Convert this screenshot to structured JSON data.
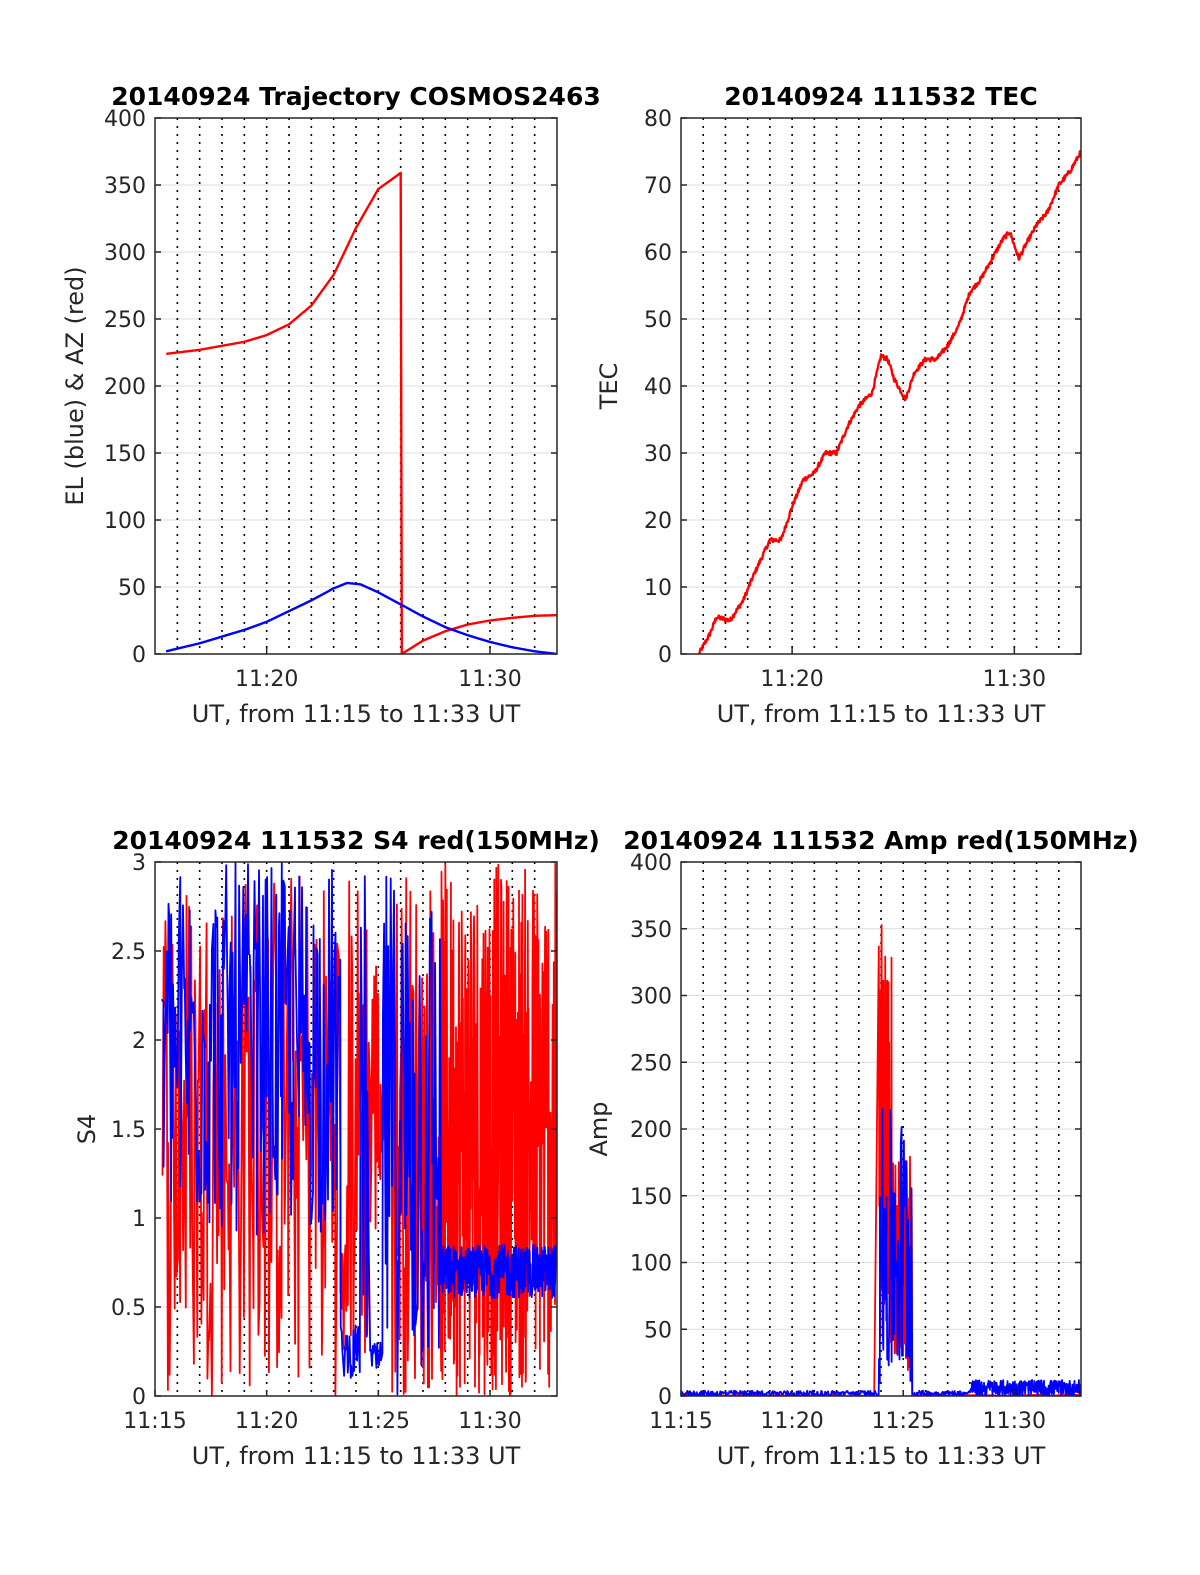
{
  "colors": {
    "red": "#ff0000",
    "blue": "#0000ff",
    "axis": "#262626",
    "grid": "#dcdcdc",
    "vgrid": "#000000"
  },
  "chart_data": [
    {
      "type": "line",
      "title": "20140924 Trajectory COSMOS2463",
      "xlabel": "UT, from 11:15 to 11:33 UT",
      "ylabel": "EL (blue) & AZ (red)",
      "xlim": [
        0,
        18
      ],
      "ylim": [
        0,
        400
      ],
      "xticks": [
        {
          "v": 5,
          "label": "11:20"
        },
        {
          "v": 15,
          "label": "11:30"
        }
      ],
      "yticks": [
        0,
        50,
        100,
        150,
        200,
        250,
        300,
        350,
        400
      ],
      "minutes_grid": true,
      "series": [
        {
          "color": "red",
          "points": [
            [
              0.5,
              224
            ],
            [
              2,
              227
            ],
            [
              4,
              233
            ],
            [
              5,
              238
            ],
            [
              6,
              246
            ],
            [
              7,
              260
            ],
            [
              8,
              283
            ],
            [
              9,
              318
            ],
            [
              10,
              347
            ],
            [
              11,
              359
            ],
            [
              11.05,
              0
            ],
            [
              12,
              10
            ],
            [
              13,
              17
            ],
            [
              14,
              22
            ],
            [
              15,
              25
            ],
            [
              16,
              27
            ],
            [
              17,
              28.5
            ],
            [
              18,
              29
            ]
          ]
        },
        {
          "color": "blue",
          "points": [
            [
              0.5,
              2
            ],
            [
              2,
              8
            ],
            [
              4,
              18
            ],
            [
              5,
              24
            ],
            [
              6,
              32
            ],
            [
              7,
              40
            ],
            [
              8,
              49
            ],
            [
              8.6,
              53
            ],
            [
              9.2,
              52
            ],
            [
              10,
              46
            ],
            [
              11,
              37
            ],
            [
              12,
              28
            ],
            [
              13,
              20
            ],
            [
              14,
              14
            ],
            [
              15,
              9
            ],
            [
              16,
              5
            ],
            [
              17,
              2
            ],
            [
              18,
              0
            ]
          ]
        }
      ]
    },
    {
      "type": "line",
      "title": "20140924 111532 TEC",
      "xlabel": "UT, from 11:15 to 11:33 UT",
      "ylabel": "TEC",
      "xlim": [
        0,
        18
      ],
      "ylim": [
        0,
        80
      ],
      "xticks": [
        {
          "v": 5,
          "label": "11:20"
        },
        {
          "v": 15,
          "label": "11:30"
        }
      ],
      "yticks": [
        0,
        10,
        20,
        30,
        40,
        50,
        60,
        70,
        80
      ],
      "minutes_grid": true,
      "series": [
        {
          "color": "red",
          "noise": 0.35,
          "points": [
            [
              0.8,
              0
            ],
            [
              1.3,
              3
            ],
            [
              1.6,
              5.5
            ],
            [
              2.2,
              5
            ],
            [
              2.8,
              8
            ],
            [
              3.3,
              12
            ],
            [
              4,
              17
            ],
            [
              4.5,
              17
            ],
            [
              5,
              22
            ],
            [
              5.5,
              26
            ],
            [
              6,
              27
            ],
            [
              6.5,
              30
            ],
            [
              7,
              30
            ],
            [
              7.5,
              34
            ],
            [
              8,
              37
            ],
            [
              8.6,
              39
            ],
            [
              9,
              44.5
            ],
            [
              9.3,
              44
            ],
            [
              9.6,
              41
            ],
            [
              10.1,
              38
            ],
            [
              10.5,
              42
            ],
            [
              11,
              44
            ],
            [
              11.5,
              44
            ],
            [
              12,
              46
            ],
            [
              12.5,
              49
            ],
            [
              13,
              54
            ],
            [
              13.5,
              56
            ],
            [
              14,
              59
            ],
            [
              14.5,
              62
            ],
            [
              14.8,
              63
            ],
            [
              15.2,
              59
            ],
            [
              15.5,
              61
            ],
            [
              16,
              64
            ],
            [
              16.5,
              66
            ],
            [
              17,
              70
            ],
            [
              17.5,
              72
            ],
            [
              18,
              75
            ]
          ]
        }
      ]
    },
    {
      "type": "line",
      "title": "20140924 111532 S4 red(150MHz)",
      "xlabel": "UT, from 11:15 to 11:33 UT",
      "ylabel": "S4",
      "xlim": [
        0,
        18
      ],
      "ylim": [
        0,
        3
      ],
      "xticks": [
        {
          "v": 0,
          "label": "11:15"
        },
        {
          "v": 5,
          "label": "11:20"
        },
        {
          "v": 10,
          "label": "11:25"
        },
        {
          "v": 15,
          "label": "11:30"
        }
      ],
      "yticks": [
        0,
        0.5,
        1,
        1.5,
        2,
        2.5,
        3
      ],
      "ytick_labels": [
        "0",
        "0.5",
        "1",
        "1.5",
        "2",
        "2.5",
        "3"
      ],
      "minutes_grid": true,
      "series": [
        {
          "color": "red",
          "segments": [
            {
              "x": [
                0.3,
                8.3
              ],
              "lo": 0,
              "hi": 3,
              "n": 170
            },
            {
              "x": [
                8.3,
                8.6
              ],
              "lo": 0.2,
              "hi": 0.9,
              "n": 12
            },
            {
              "x": [
                8.6,
                9.7
              ],
              "lo": 0.1,
              "hi": 3,
              "n": 30
            },
            {
              "x": [
                9.7,
                10.6
              ],
              "lo": 0.8,
              "hi": 2.6,
              "n": 25
            },
            {
              "x": [
                10.6,
                12.8
              ],
              "lo": 0,
              "hi": 3,
              "n": 60
            },
            {
              "x": [
                12.8,
                18
              ],
              "lo": 0,
              "hi": 3,
              "n": 320
            }
          ]
        },
        {
          "color": "blue",
          "segments": [
            {
              "x": [
                0.3,
                8.3
              ],
              "lo": 0.9,
              "hi": 3,
              "n": 190
            },
            {
              "x": [
                8.3,
                9.2
              ],
              "lo": 0.1,
              "hi": 0.4,
              "n": 25
            },
            {
              "x": [
                9.2,
                9.6
              ],
              "lo": 0.1,
              "hi": 3,
              "n": 8
            },
            {
              "x": [
                9.6,
                10.2
              ],
              "lo": 0.1,
              "hi": 0.3,
              "n": 14
            },
            {
              "x": [
                10.2,
                12.8
              ],
              "lo": 0,
              "hi": 3,
              "n": 70
            },
            {
              "x": [
                12.8,
                18
              ],
              "lo": 0.55,
              "hi": 0.85,
              "n": 340
            }
          ]
        }
      ]
    },
    {
      "type": "line",
      "title": "20140924 111532 Amp red(150MHz)",
      "xlabel": "UT, from 11:15 to 11:33 UT",
      "ylabel": "Amp",
      "xlim": [
        0,
        18
      ],
      "ylim": [
        0,
        400
      ],
      "xticks": [
        {
          "v": 0,
          "label": "11:15"
        },
        {
          "v": 5,
          "label": "11:20"
        },
        {
          "v": 10,
          "label": "11:25"
        },
        {
          "v": 15,
          "label": "11:30"
        }
      ],
      "yticks": [
        0,
        50,
        100,
        150,
        200,
        250,
        300,
        350,
        400
      ],
      "minutes_grid": true,
      "series": [
        {
          "color": "red",
          "segments": [
            {
              "x": [
                0,
                8.9
              ],
              "lo": 0,
              "hi": 1,
              "n": 30
            },
            {
              "x": [
                8.9,
                9.5
              ],
              "lo": 30,
              "hi": 355,
              "n": 40
            },
            {
              "x": [
                9.5,
                10.4
              ],
              "lo": 10,
              "hi": 180,
              "n": 40
            },
            {
              "x": [
                10.4,
                18
              ],
              "lo": 0,
              "hi": 1,
              "n": 30
            }
          ]
        },
        {
          "color": "blue",
          "segments": [
            {
              "x": [
                0,
                8.9
              ],
              "lo": 0,
              "hi": 4,
              "n": 300
            },
            {
              "x": [
                8.9,
                10.4
              ],
              "lo": 0,
              "hi": 215,
              "n": 60
            },
            {
              "x": [
                10.4,
                13
              ],
              "lo": 0,
              "hi": 4,
              "n": 90
            },
            {
              "x": [
                13,
                18
              ],
              "lo": 0,
              "hi": 12,
              "n": 300
            }
          ]
        }
      ]
    }
  ]
}
